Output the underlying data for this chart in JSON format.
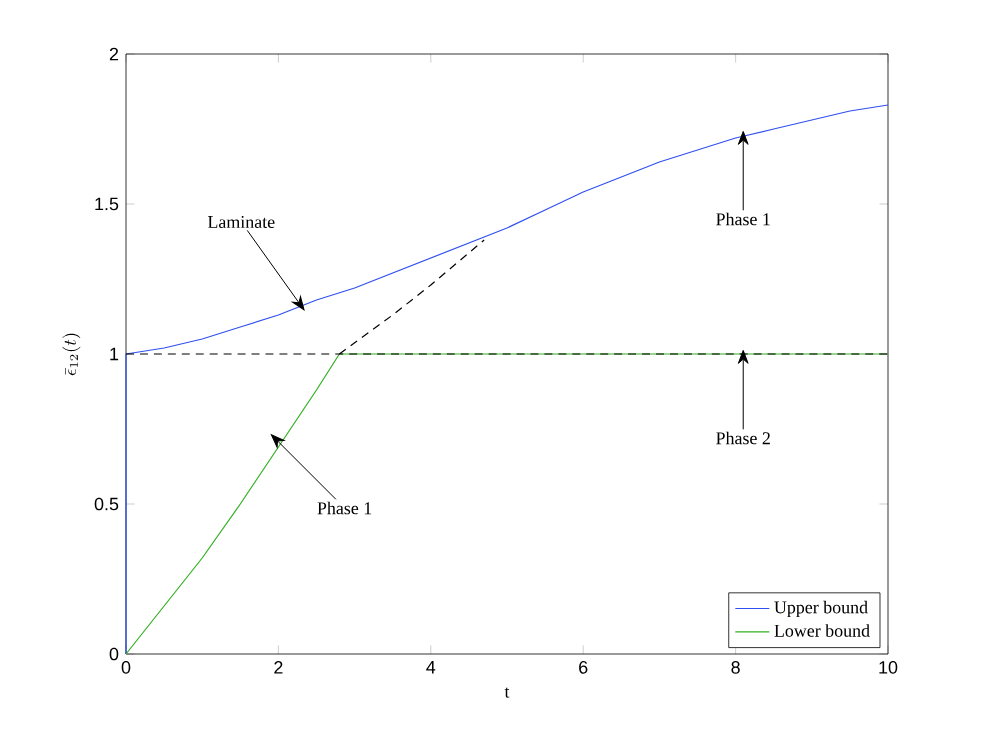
{
  "chart_data": {
    "type": "line",
    "xlabel": "t",
    "ylabel": "\\bar{\\epsilon}_{12}(t)",
    "xlim": [
      0,
      10
    ],
    "ylim": [
      0,
      2
    ],
    "xticks": [
      0,
      2,
      4,
      6,
      8,
      10
    ],
    "yticks": [
      0,
      0.5,
      1,
      1.5,
      2
    ],
    "grid": false,
    "legend": "bottom right",
    "marker": "none",
    "series": [
      {
        "name": "Upper bound",
        "color": "#3050f0",
        "line_style": "solid",
        "x": [
          0,
          0,
          0.5,
          1,
          1.5,
          2,
          2.5,
          3,
          3.5,
          4,
          4.5,
          5,
          5.5,
          6,
          6.5,
          7,
          7.5,
          8,
          8.5,
          9,
          9.5,
          10
        ],
        "values": [
          0,
          1,
          1.02,
          1.05,
          1.09,
          1.13,
          1.18,
          1.22,
          1.27,
          1.32,
          1.37,
          1.42,
          1.48,
          1.54,
          1.59,
          1.64,
          1.68,
          1.72,
          1.75,
          1.78,
          1.81,
          1.83
        ]
      },
      {
        "name": "Lower bound",
        "color": "#30b020",
        "line_style": "solid",
        "x": [
          0,
          0.5,
          1,
          1.5,
          2,
          2.5,
          2.8,
          10
        ],
        "values": [
          0,
          0.16,
          0.32,
          0.5,
          0.69,
          0.88,
          1,
          1
        ]
      },
      {
        "color": "#000000",
        "line_style": "dashed",
        "x": [
          0,
          10
        ],
        "values": [
          1,
          1
        ]
      },
      {
        "color": "#000000",
        "line_style": "dashed",
        "x": [
          2.8,
          3.5,
          4,
          4.7
        ],
        "values": [
          1,
          1.13,
          1.23,
          1.38
        ]
      }
    ],
    "annotations": [
      {
        "text": "Laminate",
        "x": 2.3,
        "y": 1.16
      },
      {
        "text": "Phase 1",
        "x": 8.1,
        "y": 1.73
      },
      {
        "text": "Phase 2",
        "x": 8.1,
        "y": 1.0
      },
      {
        "text": "Phase 1",
        "x": 1.95,
        "y": 0.72
      }
    ]
  }
}
